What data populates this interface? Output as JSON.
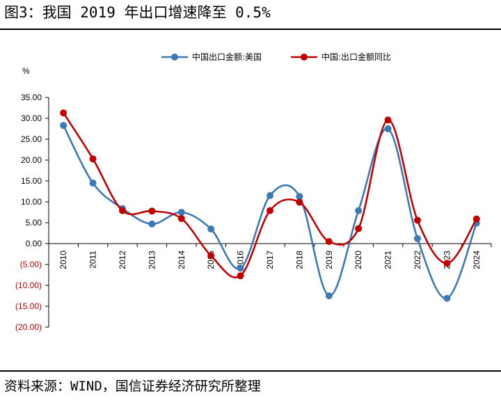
{
  "page": {
    "title": "图3：我国 2019 年出口增速降至 0.5%",
    "source": "资料来源：WIND，国信证券经济研究所整理"
  },
  "chart_data": {
    "type": "line",
    "unit_label": "%",
    "x": [
      "2010",
      "2011",
      "2012",
      "2013",
      "2014",
      "2015",
      "2016",
      "2017",
      "2018",
      "2019",
      "2020",
      "2021",
      "2022",
      "2023",
      "2024"
    ],
    "ylim": [
      -20,
      35
    ],
    "yticks": [
      35,
      30,
      25,
      20,
      15,
      10,
      5,
      0,
      -5,
      -10,
      -15,
      -20
    ],
    "ytick_labels": [
      "35.00",
      "30.00",
      "25.00",
      "20.00",
      "15.00",
      "10.00",
      "5.00",
      "0.00",
      "(5.00)",
      "(10.00)",
      "(15.00)",
      "(20.00)"
    ],
    "negative_tick_color": "#c00000",
    "legend_position": "top",
    "smooth": true,
    "series": [
      {
        "name": "中国出口金额:美国",
        "color": "#3c78b4",
        "values": [
          28.3,
          14.5,
          8.4,
          4.7,
          7.5,
          3.5,
          -5.9,
          11.5,
          11.3,
          -12.5,
          7.9,
          27.5,
          1.2,
          -13.1,
          4.9
        ]
      },
      {
        "name": "中国:出口金额同比",
        "color": "#c00000",
        "values": [
          31.3,
          20.3,
          7.9,
          7.8,
          6.0,
          -2.9,
          -7.7,
          7.9,
          9.9,
          0.5,
          3.6,
          29.6,
          5.6,
          -4.7,
          5.9
        ]
      }
    ]
  }
}
